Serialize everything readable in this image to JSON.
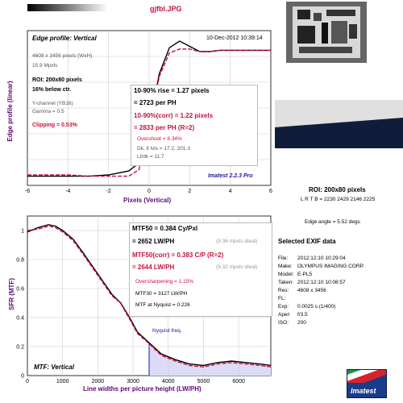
{
  "file_title": "gjfbl.JPG",
  "edge_panel": {
    "title": "Edge profile: Vertical",
    "timestamp": "10-Dec-2012 10:39:14",
    "image_size": "4608 x 3456 pixels (WxH)",
    "mpxls": "15.9 Mpxls",
    "roi": "ROI: 200x80 pixels",
    "below_ctr": "16% below ctr.",
    "channel": "Y-channel  (YB16)",
    "gamma": "Gamma = 0.5",
    "clipping": "Clipping =  0.53%",
    "rise": "10-90% rise = 1.27 pixels",
    "rise_ph": "= 2723 per PH",
    "rise_corr": "10-90%(corr) = 1.22 pixels",
    "rise_corr_ph": "= 2833 per PH  (R=2)",
    "overshoot": "Overshoot = 8.34%",
    "dk_lvls": "Dk, lt lvls = 17.2, 201.3",
    "lt_dk": "Lt/dk = 11.7",
    "version": "Imatest 2.2.3 Pro",
    "ylabel": "Edge profile (linear)",
    "xlabel": "Pixels (Vertical)"
  },
  "mtf_panel": {
    "mtf50": "MTF50 = 0.384 Cy/Pxl",
    "mtf50_lw": "= 2652 LW/PH",
    "mtf50_ideal": "(9.36 mpxls ideal)",
    "mtf50c": "MTF50(corr) = 0.383 C/P  (R=2)",
    "mtf50c_lw": "= 2644 LW/PH",
    "mtf50c_ideal": "(9.32 mpxls ideal)",
    "oversharpening": "Oversharpening = 1.15%",
    "mtf30": "MTF30 = 3127 LW/PH",
    "mtf_nyq": "MTF at Nyquist = 0.226",
    "nyquist_label": "Nyquist freq.",
    "title": "MTF: Vertical",
    "ylabel": "SFR (MTF)",
    "xlabel": "Line widths per picture height (LW/PH)"
  },
  "roi_info": {
    "roi": "ROI: 200x80 pixels",
    "lrtb": "L R T B = 2230 2429  2146 2225",
    "edge_angle": "Edge angle = 5.52 degs"
  },
  "exif": {
    "title": "Selected EXIF data",
    "rows": [
      {
        "k": "File:",
        "v": "2012:12:10 10:29:04"
      },
      {
        "k": "Make:",
        "v": "OLYMPUS IMAGING CORP."
      },
      {
        "k": "Model:",
        "v": "E-PL5"
      },
      {
        "k": "Taken:",
        "v": "2012:12:10 10:08:57"
      },
      {
        "k": "Res:",
        "v": "4608 x 3456"
      },
      {
        "k": "FL:",
        "v": ""
      },
      {
        "k": "Exp:",
        "v": "0.0025 s  (1/400)"
      },
      {
        "k": "Aper:",
        "v": "f/3.5"
      },
      {
        "k": "ISO:",
        "v": "200"
      }
    ]
  },
  "logo_text": "Imatest",
  "colors": {
    "purple_text": "#5c0a7a",
    "crimson": "#c8103c",
    "navy": "#1a1aa8",
    "nyquist_fill": "#dcdcf8"
  },
  "chart_data": [
    {
      "type": "line",
      "title": "Edge profile: Vertical",
      "xlabel": "Pixels (Vertical)",
      "ylabel": "Edge profile (linear)",
      "xlim": [
        -6,
        6
      ],
      "x_ticks": [
        "-6",
        "-4",
        "-2",
        "0",
        "2",
        "4",
        "6"
      ],
      "grid": true,
      "series": [
        {
          "name": "",
          "color": "#000000",
          "x": [
            -6,
            -5,
            -4,
            -3,
            -2,
            -1,
            -0.5,
            0,
            0.5,
            1,
            1.5,
            2,
            2.5,
            3,
            3.5,
            4,
            4.5,
            5,
            6
          ],
          "y": [
            0.02,
            0.02,
            0.02,
            0.02,
            0.03,
            0.06,
            0.12,
            0.4,
            0.8,
            1.0,
            1.05,
            1.01,
            0.97,
            0.97,
            0.98,
            0.98,
            0.98,
            0.98,
            0.98
          ]
        },
        {
          "name": "",
          "color": "#c8103c",
          "x": [
            -6,
            -5,
            -4,
            -3,
            -2,
            -1,
            -0.5,
            0,
            0.5,
            1,
            1.5,
            2,
            2.5,
            3,
            3.5,
            4,
            4.5,
            5,
            6
          ],
          "y": [
            0.03,
            0.03,
            0.03,
            0.02,
            0.02,
            0.02,
            0.07,
            0.38,
            0.78,
            0.96,
            0.99,
            0.99,
            0.97,
            0.97,
            0.98,
            0.98,
            0.98,
            0.98,
            0.98
          ]
        }
      ]
    },
    {
      "type": "line",
      "title": "MTF: Vertical",
      "xlabel": "Line widths per picture height (LW/PH)",
      "ylabel": "SFR (MTF)",
      "xlim": [
        0,
        6912
      ],
      "ylim": [
        0,
        1.1
      ],
      "x_ticks": [
        "0",
        "1000",
        "2000",
        "3000",
        "4000",
        "5000",
        "6000"
      ],
      "y_ticks": [
        "0",
        "0.2",
        "0.4",
        "0.6",
        "0.8",
        "1"
      ],
      "nyquist": 3456,
      "grid": true,
      "series": [
        {
          "name": "",
          "color": "#000000",
          "x": [
            0,
            300,
            600,
            800,
            1000,
            1300,
            1600,
            2000,
            2400,
            2652,
            2900,
            3127,
            3456,
            3800,
            4200,
            4600,
            5000,
            5400,
            5800,
            6200,
            6600,
            6912
          ],
          "y": [
            0.99,
            1.02,
            1.04,
            1.03,
            1.0,
            0.94,
            0.84,
            0.7,
            0.56,
            0.5,
            0.4,
            0.3,
            0.226,
            0.15,
            0.11,
            0.08,
            0.07,
            0.09,
            0.1,
            0.09,
            0.08,
            0.07
          ]
        },
        {
          "name": "",
          "color": "#c8103c",
          "x": [
            0,
            300,
            600,
            800,
            1000,
            1300,
            1600,
            2000,
            2400,
            2644,
            2900,
            3127,
            3456,
            3800,
            4200,
            4600,
            5000,
            5400,
            5800,
            6200,
            6600,
            6912
          ],
          "y": [
            1.0,
            1.01,
            1.03,
            1.02,
            0.99,
            0.93,
            0.83,
            0.69,
            0.55,
            0.5,
            0.39,
            0.29,
            0.22,
            0.14,
            0.1,
            0.07,
            0.06,
            0.08,
            0.09,
            0.08,
            0.07,
            0.06
          ]
        }
      ]
    }
  ]
}
